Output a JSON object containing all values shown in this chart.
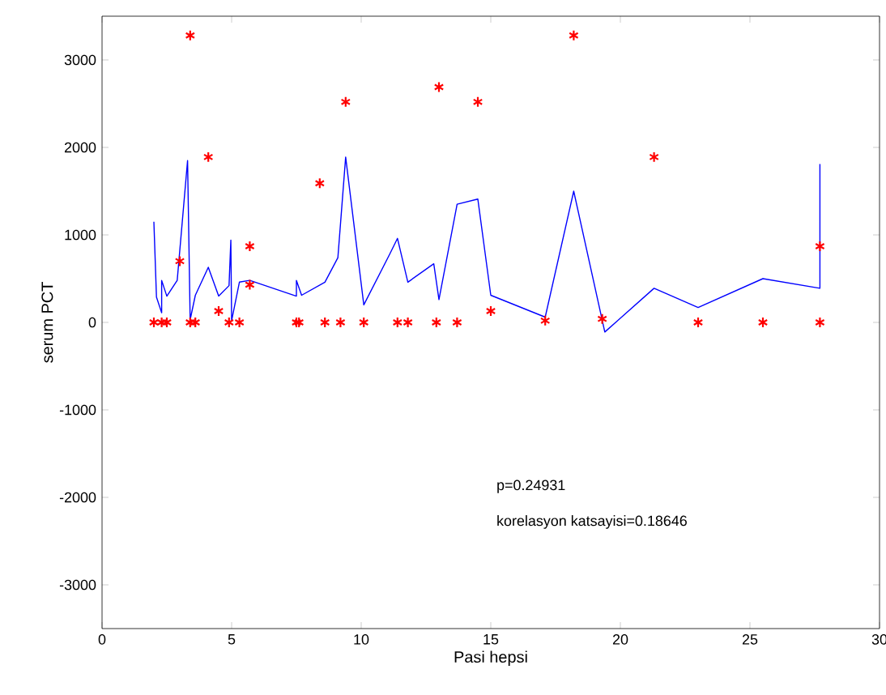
{
  "chart_data": {
    "type": "scatter",
    "xlabel": "Pasi hepsi",
    "ylabel": "serum PCT",
    "xlim": [
      0,
      30
    ],
    "ylim": [
      -3500,
      3500
    ],
    "xticks": [
      0,
      5,
      10,
      15,
      20,
      25,
      30
    ],
    "yticks": [
      -3000,
      -2000,
      -1000,
      0,
      1000,
      2000,
      3000
    ],
    "grid": false,
    "series": [
      {
        "marker": "cross",
        "color": "#ff0000",
        "x": [
          2.0,
          2.3,
          2.5,
          3.4,
          3.6,
          4.9,
          5.3,
          7.5,
          7.6,
          8.6,
          9.2,
          10.1,
          11.4,
          11.8,
          12.9,
          13.7,
          15.0,
          17.1,
          19.3,
          23.0,
          25.5,
          27.7,
          3.4,
          4.1,
          3.0,
          5.7,
          4.5,
          5.7,
          8.4,
          9.4,
          13.0,
          14.5,
          18.2,
          21.3,
          27.7
        ],
        "values": [
          0,
          0,
          0,
          0,
          0,
          0,
          0,
          0,
          0,
          0,
          0,
          0,
          0,
          0,
          0,
          0,
          130,
          20,
          40,
          0,
          0,
          0,
          3280,
          1890,
          700,
          870,
          130,
          430,
          1590,
          2520,
          2690,
          2520,
          3280,
          1890,
          870
        ]
      },
      {
        "type": "line",
        "marker": "none",
        "line_style": "solid",
        "color": "#0000ff",
        "x": [
          2.0,
          2.1,
          2.3,
          2.3,
          2.5,
          2.9,
          3.3,
          3.4,
          3.6,
          4.1,
          4.5,
          4.9,
          4.97,
          5.0,
          5.3,
          5.7,
          7.5,
          7.5,
          7.7,
          8.6,
          9.1,
          9.4,
          10.1,
          11.1,
          11.4,
          11.8,
          12.8,
          13.0,
          13.7,
          14.5,
          15.0,
          17.1,
          18.2,
          19.4,
          21.3,
          23.0,
          25.5,
          27.7,
          27.7
        ],
        "values": [
          1150,
          290,
          110,
          480,
          300,
          480,
          1850,
          30,
          310,
          630,
          300,
          420,
          940,
          20,
          460,
          480,
          300,
          480,
          310,
          460,
          740,
          1890,
          200,
          780,
          960,
          460,
          670,
          260,
          1350,
          1410,
          310,
          60,
          1500,
          -110,
          390,
          170,
          500,
          390,
          1810
        ]
      }
    ],
    "annotations": [
      "p=0.24931",
      "korelasyon katsayisi=0.18646"
    ]
  }
}
